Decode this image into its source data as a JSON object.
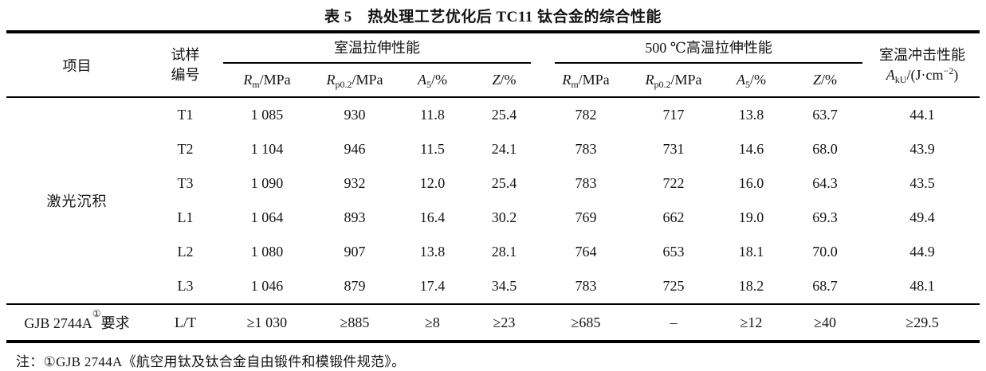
{
  "page": {
    "background": "#ffffff",
    "text_color": "#141414"
  },
  "title": "表 5　热处理工艺优化后 TC11 钛合金的综合性能",
  "table": {
    "header": {
      "project": "项目",
      "sample": "试样\n编号",
      "group_rt": "室温拉伸性能",
      "group_ht": "500 ℃高温拉伸性能",
      "impact_line1": "室温冲击性能",
      "impact_formula": {
        "sym": "A",
        "sub": "kU",
        "mid": "/(J·cm",
        "sup": "−2",
        "end": ")"
      },
      "cols": [
        {
          "sym": "R",
          "sub": "m",
          "rest": "/MPa"
        },
        {
          "sym": "R",
          "sub": "p0.2",
          "rest": "/MPa"
        },
        {
          "sym": "A",
          "sub": "5",
          "rest": "/%"
        },
        {
          "sym": "Z",
          "sub": "",
          "rest": "/%"
        },
        {
          "sym": "R",
          "sub": "m",
          "rest": "/MPa"
        },
        {
          "sym": "R",
          "sub": "p0.2",
          "rest": "/MPa"
        },
        {
          "sym": "A",
          "sub": "5",
          "rest": "/%"
        },
        {
          "sym": "Z",
          "sub": "",
          "rest": "/%"
        }
      ]
    },
    "project_label": "激光沉积",
    "rows": [
      {
        "id": "T1",
        "values": [
          "1 085",
          "930",
          "11.8",
          "25.4",
          "782",
          "717",
          "13.8",
          "63.7",
          "44.1"
        ]
      },
      {
        "id": "T2",
        "values": [
          "1 104",
          "946",
          "11.5",
          "24.1",
          "783",
          "731",
          "14.6",
          "68.0",
          "43.9"
        ]
      },
      {
        "id": "T3",
        "values": [
          "1 090",
          "932",
          "12.0",
          "25.4",
          "783",
          "722",
          "16.0",
          "64.3",
          "43.5"
        ]
      },
      {
        "id": "L1",
        "values": [
          "1 064",
          "893",
          "16.4",
          "30.2",
          "769",
          "662",
          "19.0",
          "69.3",
          "49.4"
        ]
      },
      {
        "id": "L2",
        "values": [
          "1 080",
          "907",
          "13.8",
          "28.1",
          "764",
          "653",
          "18.1",
          "70.0",
          "44.9"
        ]
      },
      {
        "id": "L3",
        "values": [
          "1 046",
          "879",
          "17.4",
          "34.5",
          "783",
          "725",
          "18.2",
          "68.7",
          "48.1"
        ]
      }
    ],
    "requirement": {
      "label_pre": "GJB 2744A",
      "label_sup": "①",
      "label_post": "要求",
      "sample": "L/T",
      "values": [
        "≥1 030",
        "≥885",
        "≥8",
        "≥23",
        "≥685",
        "–",
        "≥12",
        "≥40",
        "≥29.5"
      ]
    }
  },
  "footnote": "注：①GJB 2744A《航空用钛及钛合金自由锻件和模锻件规范》。"
}
